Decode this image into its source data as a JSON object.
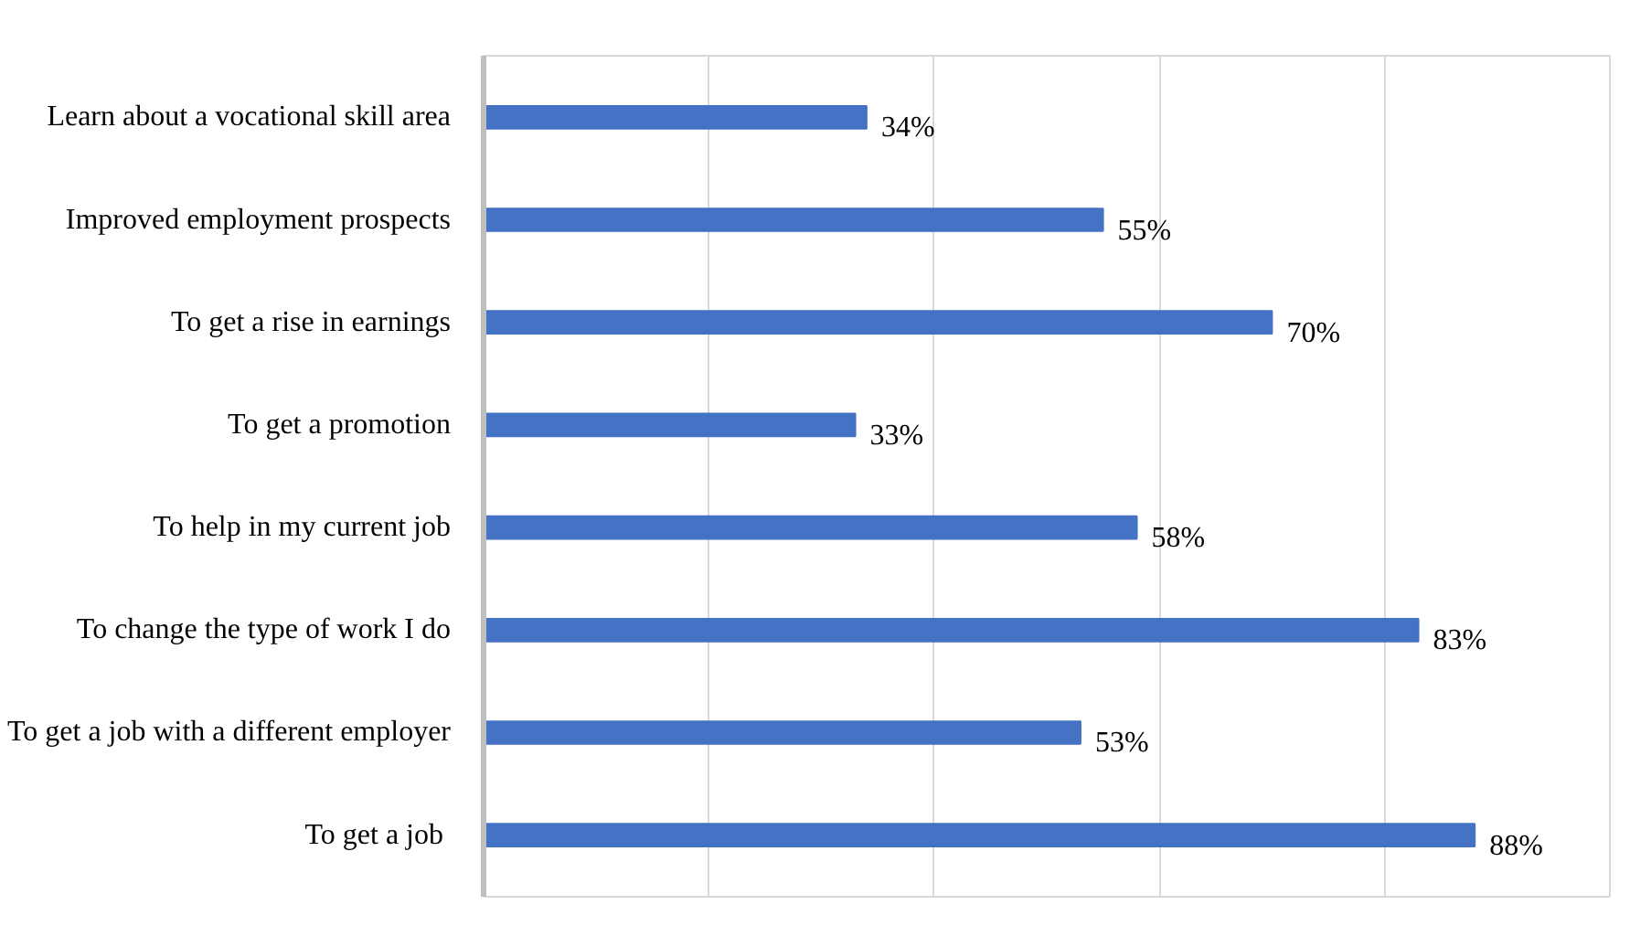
{
  "chart_data": {
    "type": "bar",
    "orientation": "horizontal",
    "categories": [
      "Learn about a vocational skill area",
      "Improved employment prospects",
      "To get a rise in earnings",
      "To get a promotion",
      "To help in my current job",
      "To change the type of work I do",
      "To get a job with a different employer",
      "To get a job "
    ],
    "values": [
      34,
      55,
      70,
      33,
      58,
      83,
      53,
      88
    ],
    "value_labels": [
      "34%",
      "55%",
      "70%",
      "33%",
      "58%",
      "83%",
      "53%",
      "88%"
    ],
    "color": "#4472c4",
    "xlim": [
      0,
      100
    ],
    "xticks": [
      {
        "value": 0,
        "label": null
      },
      {
        "value": 20,
        "label": null
      },
      {
        "value": 40,
        "label": null
      },
      {
        "value": 60,
        "label": null
      },
      {
        "value": 80,
        "label": null
      }
    ],
    "grid": "x",
    "tick_labels": "y"
  }
}
